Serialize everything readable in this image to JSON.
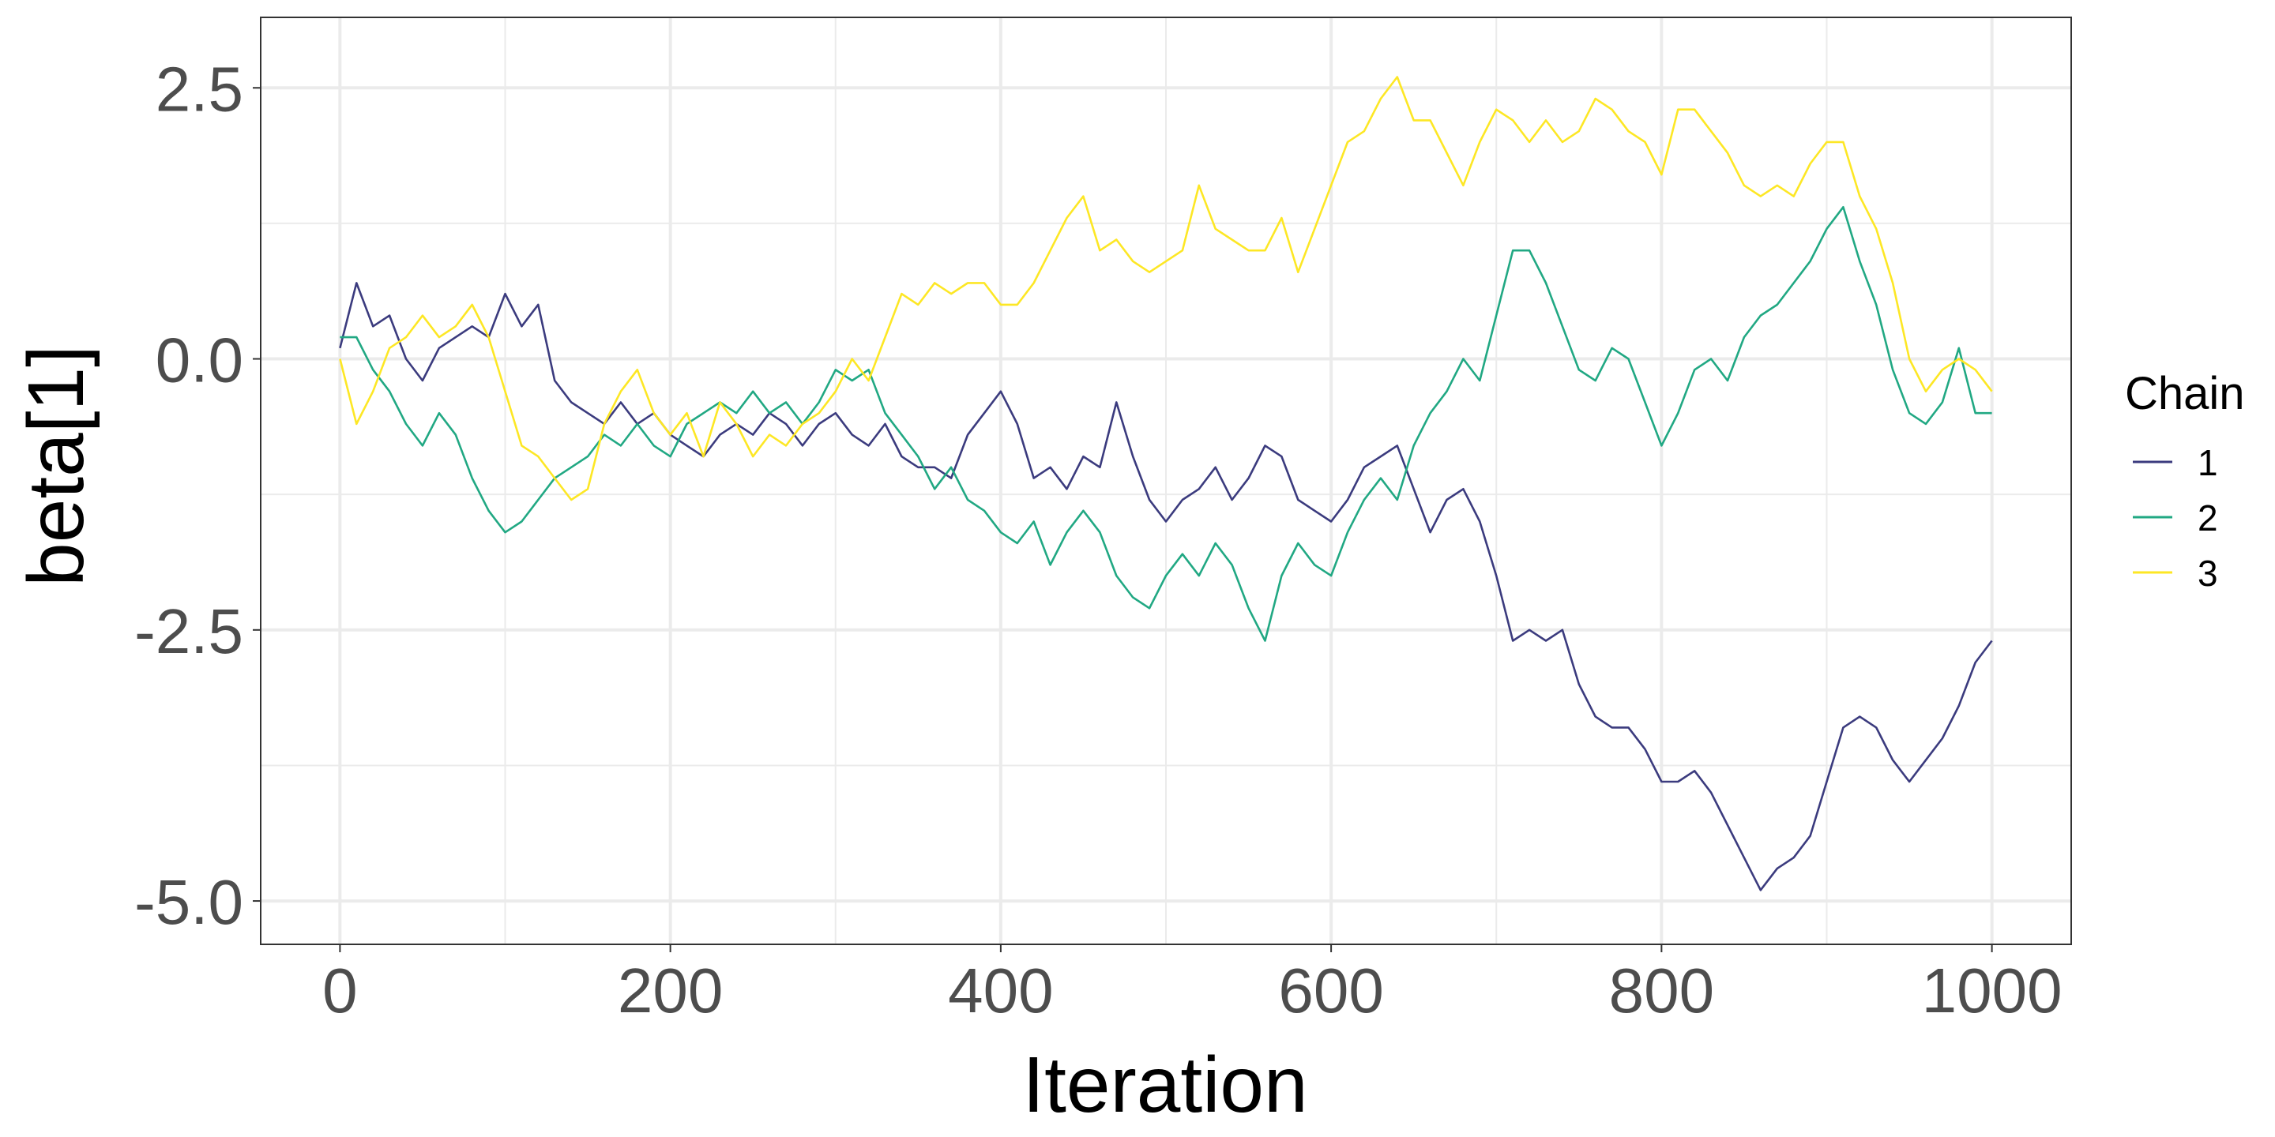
{
  "chart_data": {
    "type": "line",
    "title": "",
    "xlabel": "Iteration",
    "ylabel": "beta[1]",
    "xlim": [
      -48,
      1048
    ],
    "ylim": [
      -5.4,
      3.15
    ],
    "xticks": [
      0,
      200,
      400,
      600,
      800,
      1000
    ],
    "xtick_labels": [
      "0",
      "200",
      "400",
      "600",
      "800",
      "1000"
    ],
    "yticks": [
      2.5,
      0,
      -2.5,
      -5
    ],
    "ytick_labels": [
      "2.5",
      "0.0",
      "-2.5",
      "-5.0"
    ],
    "grid": true,
    "legend": {
      "title": "Chain",
      "position": "right"
    },
    "series": [
      {
        "name": "1",
        "color": "#3b3b7e",
        "x": [
          0,
          10,
          20,
          30,
          40,
          50,
          60,
          70,
          80,
          90,
          100,
          110,
          120,
          130,
          140,
          150,
          160,
          170,
          180,
          190,
          200,
          210,
          220,
          230,
          240,
          250,
          260,
          270,
          280,
          290,
          300,
          310,
          320,
          330,
          340,
          350,
          360,
          370,
          380,
          390,
          400,
          410,
          420,
          430,
          440,
          450,
          460,
          470,
          480,
          490,
          500,
          510,
          520,
          530,
          540,
          550,
          560,
          570,
          580,
          590,
          600,
          610,
          620,
          630,
          640,
          650,
          660,
          670,
          680,
          690,
          700,
          710,
          720,
          730,
          740,
          750,
          760,
          770,
          780,
          790,
          800,
          810,
          820,
          830,
          840,
          850,
          860,
          870,
          880,
          890,
          900,
          910,
          920,
          930,
          940,
          950,
          960,
          970,
          980,
          990,
          1000
        ],
        "y": [
          0.1,
          0.7,
          0.3,
          0.4,
          0.0,
          -0.2,
          0.1,
          0.2,
          0.3,
          0.2,
          0.6,
          0.3,
          0.5,
          -0.2,
          -0.4,
          -0.5,
          -0.6,
          -0.4,
          -0.6,
          -0.5,
          -0.7,
          -0.8,
          -0.9,
          -0.7,
          -0.6,
          -0.7,
          -0.5,
          -0.6,
          -0.8,
          -0.6,
          -0.5,
          -0.7,
          -0.8,
          -0.6,
          -0.9,
          -1.0,
          -1.0,
          -1.1,
          -0.7,
          -0.5,
          -0.3,
          -0.6,
          -1.1,
          -1.0,
          -1.2,
          -0.9,
          -1.0,
          -0.4,
          -0.9,
          -1.3,
          -1.5,
          -1.3,
          -1.2,
          -1.0,
          -1.3,
          -1.1,
          -0.8,
          -0.9,
          -1.3,
          -1.4,
          -1.5,
          -1.3,
          -1.0,
          -0.9,
          -0.8,
          -1.2,
          -1.6,
          -1.3,
          -1.2,
          -1.5,
          -2.0,
          -2.6,
          -2.5,
          -2.6,
          -2.5,
          -3.0,
          -3.3,
          -3.4,
          -3.4,
          -3.6,
          -3.9,
          -3.9,
          -3.8,
          -4.0,
          -4.3,
          -4.6,
          -4.9,
          -4.7,
          -4.6,
          -4.4,
          -3.9,
          -3.4,
          -3.3,
          -3.4,
          -3.7,
          -3.9,
          -3.7,
          -3.5,
          -3.2,
          -2.8,
          -2.6
        ]
      },
      {
        "name": "2",
        "color": "#21a883",
        "x": [
          0,
          10,
          20,
          30,
          40,
          50,
          60,
          70,
          80,
          90,
          100,
          110,
          120,
          130,
          140,
          150,
          160,
          170,
          180,
          190,
          200,
          210,
          220,
          230,
          240,
          250,
          260,
          270,
          280,
          290,
          300,
          310,
          320,
          330,
          340,
          350,
          360,
          370,
          380,
          390,
          400,
          410,
          420,
          430,
          440,
          450,
          460,
          470,
          480,
          490,
          500,
          510,
          520,
          530,
          540,
          550,
          560,
          570,
          580,
          590,
          600,
          610,
          620,
          630,
          640,
          650,
          660,
          670,
          680,
          690,
          700,
          710,
          720,
          730,
          740,
          750,
          760,
          770,
          780,
          790,
          800,
          810,
          820,
          830,
          840,
          850,
          860,
          870,
          880,
          890,
          900,
          910,
          920,
          930,
          940,
          950,
          960,
          970,
          980,
          990,
          1000
        ],
        "y": [
          0.2,
          0.2,
          -0.1,
          -0.3,
          -0.6,
          -0.8,
          -0.5,
          -0.7,
          -1.1,
          -1.4,
          -1.6,
          -1.5,
          -1.3,
          -1.1,
          -1.0,
          -0.9,
          -0.7,
          -0.8,
          -0.6,
          -0.8,
          -0.9,
          -0.6,
          -0.5,
          -0.4,
          -0.5,
          -0.3,
          -0.5,
          -0.4,
          -0.6,
          -0.4,
          -0.1,
          -0.2,
          -0.1,
          -0.5,
          -0.7,
          -0.9,
          -1.2,
          -1.0,
          -1.3,
          -1.4,
          -1.6,
          -1.7,
          -1.5,
          -1.9,
          -1.6,
          -1.4,
          -1.6,
          -2.0,
          -2.2,
          -2.3,
          -2.0,
          -1.8,
          -2.0,
          -1.7,
          -1.9,
          -2.3,
          -2.6,
          -2.0,
          -1.7,
          -1.9,
          -2.0,
          -1.6,
          -1.3,
          -1.1,
          -1.3,
          -0.8,
          -0.5,
          -0.3,
          0.0,
          -0.2,
          0.4,
          1.0,
          1.0,
          0.7,
          0.3,
          -0.1,
          -0.2,
          0.1,
          0.0,
          -0.4,
          -0.8,
          -0.5,
          -0.1,
          0.0,
          -0.2,
          0.2,
          0.4,
          0.5,
          0.7,
          0.9,
          1.2,
          1.4,
          0.9,
          0.5,
          -0.1,
          -0.5,
          -0.6,
          -0.4,
          0.1,
          -0.5,
          -0.5
        ]
      },
      {
        "name": "3",
        "color": "#fde725",
        "x": [
          0,
          10,
          20,
          30,
          40,
          50,
          60,
          70,
          80,
          90,
          100,
          110,
          120,
          130,
          140,
          150,
          160,
          170,
          180,
          190,
          200,
          210,
          220,
          230,
          240,
          250,
          260,
          270,
          280,
          290,
          300,
          310,
          320,
          330,
          340,
          350,
          360,
          370,
          380,
          390,
          400,
          410,
          420,
          430,
          440,
          450,
          460,
          470,
          480,
          490,
          500,
          510,
          520,
          530,
          540,
          550,
          560,
          570,
          580,
          590,
          600,
          610,
          620,
          630,
          640,
          650,
          660,
          670,
          680,
          690,
          700,
          710,
          720,
          730,
          740,
          750,
          760,
          770,
          780,
          790,
          800,
          810,
          820,
          830,
          840,
          850,
          860,
          870,
          880,
          890,
          900,
          910,
          920,
          930,
          940,
          950,
          960,
          970,
          980,
          990,
          1000
        ],
        "y": [
          0.0,
          -0.6,
          -0.3,
          0.1,
          0.2,
          0.4,
          0.2,
          0.3,
          0.5,
          0.2,
          -0.3,
          -0.8,
          -0.9,
          -1.1,
          -1.3,
          -1.2,
          -0.6,
          -0.3,
          -0.1,
          -0.5,
          -0.7,
          -0.5,
          -0.9,
          -0.4,
          -0.6,
          -0.9,
          -0.7,
          -0.8,
          -0.6,
          -0.5,
          -0.3,
          0.0,
          -0.2,
          0.2,
          0.6,
          0.5,
          0.7,
          0.6,
          0.7,
          0.7,
          0.5,
          0.5,
          0.7,
          1.0,
          1.3,
          1.5,
          1.0,
          1.1,
          0.9,
          0.8,
          0.9,
          1.0,
          1.6,
          1.2,
          1.1,
          1.0,
          1.0,
          1.3,
          0.8,
          1.2,
          1.6,
          2.0,
          2.1,
          2.4,
          2.6,
          2.2,
          2.2,
          1.9,
          1.6,
          2.0,
          2.3,
          2.2,
          2.0,
          2.2,
          2.0,
          2.1,
          2.4,
          2.3,
          2.1,
          2.0,
          1.7,
          2.3,
          2.3,
          2.1,
          1.9,
          1.6,
          1.5,
          1.6,
          1.5,
          1.8,
          2.0,
          2.0,
          1.5,
          1.2,
          0.7,
          0.0,
          -0.3,
          -0.1,
          0.0,
          -0.1,
          -0.3
        ]
      }
    ]
  }
}
